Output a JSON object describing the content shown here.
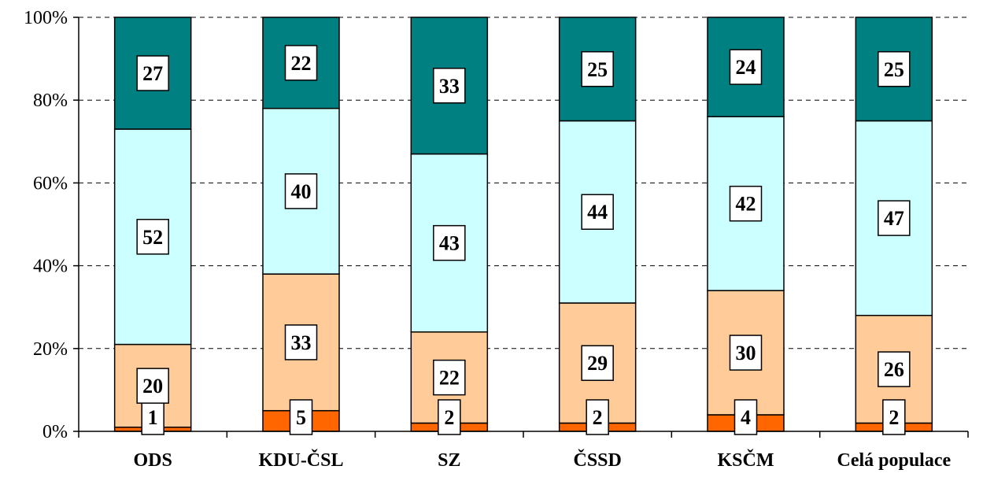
{
  "chart_data": {
    "type": "bar",
    "stacked": true,
    "normalized_percent": true,
    "categories": [
      "ODS",
      "KDU-ČSL",
      "SZ",
      "ČSSD",
      "KSČM",
      "Celá populace"
    ],
    "series": [
      {
        "values": [
          1,
          5,
          2,
          2,
          4,
          2
        ],
        "color": "#ff6600"
      },
      {
        "values": [
          20,
          33,
          22,
          29,
          30,
          26
        ],
        "color": "#ffcc99"
      },
      {
        "values": [
          52,
          40,
          43,
          44,
          42,
          47
        ],
        "color": "#ccffff"
      },
      {
        "values": [
          27,
          22,
          33,
          25,
          24,
          25
        ],
        "color": "#008080"
      }
    ],
    "ylim": [
      0,
      100
    ],
    "y_ticks": [
      "0%",
      "20%",
      "40%",
      "60%",
      "80%",
      "100%"
    ],
    "grid": "horizontal-dashed",
    "legend": "none"
  }
}
